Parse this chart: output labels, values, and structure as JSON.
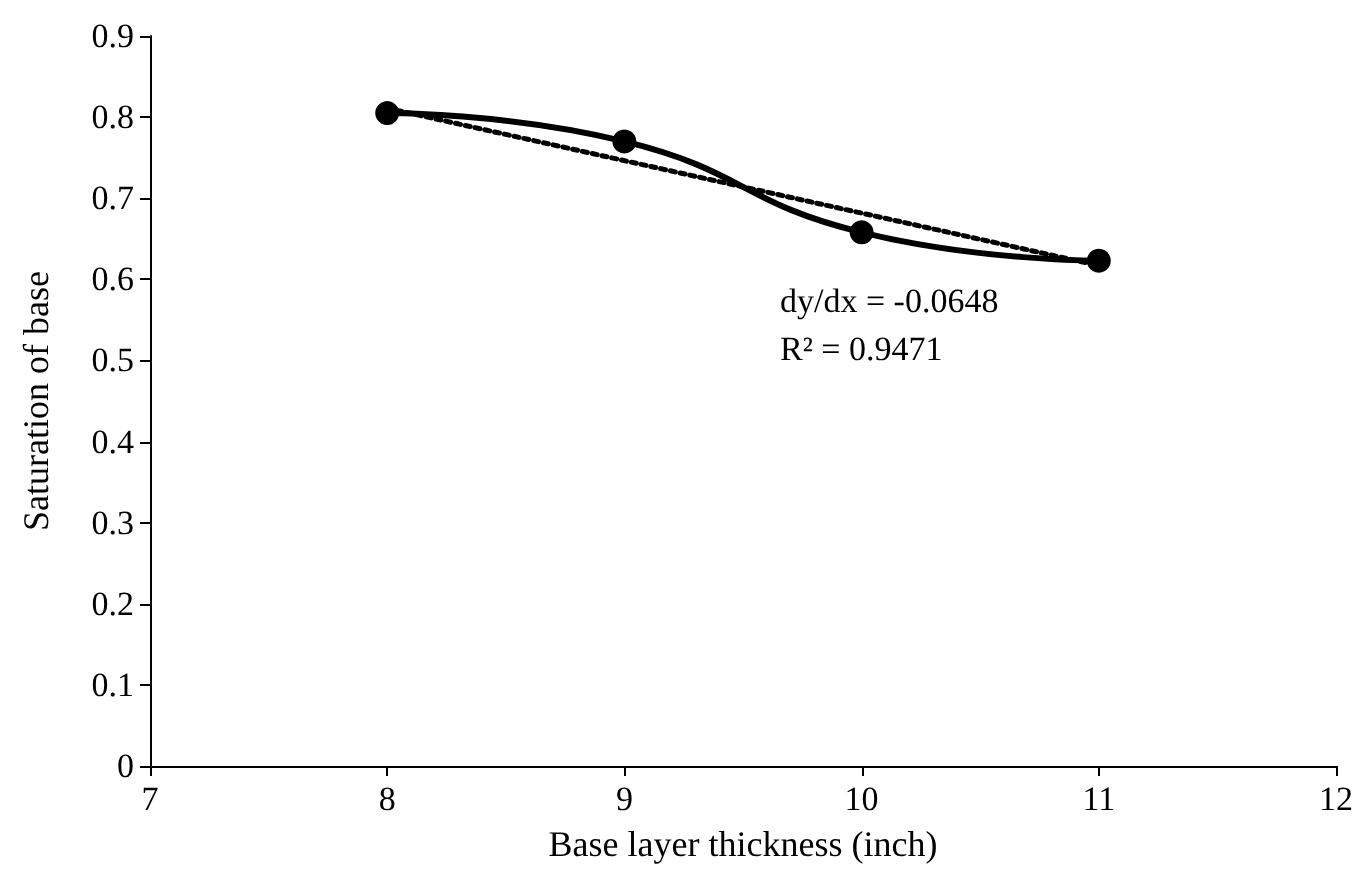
{
  "chart_data": {
    "type": "line",
    "xlabel": "Base layer thickness (inch)",
    "ylabel": "Saturation of base",
    "x": [
      8,
      9,
      10,
      11
    ],
    "series": [
      {
        "color": "#000000",
        "values": [
          0.805,
          0.77,
          0.658,
          0.623
        ],
        "marker": "circle",
        "line_style": "solid"
      },
      {
        "color": "#000000",
        "x": [
          8,
          11
        ],
        "values": [
          0.811,
          0.617
        ],
        "marker": "none",
        "line_style": "dotted"
      }
    ],
    "xlim": [
      7,
      12
    ],
    "xticks": [
      7,
      8,
      9,
      10,
      11,
      12
    ],
    "ylim": [
      0,
      0.9
    ],
    "yticks": [
      0,
      0.1,
      0.2,
      0.3,
      0.4,
      0.5,
      0.6,
      0.7,
      0.8,
      0.9
    ],
    "grid": false,
    "annotations": [
      "dy/dx = -0.0648",
      "R² = 0.9471"
    ]
  }
}
